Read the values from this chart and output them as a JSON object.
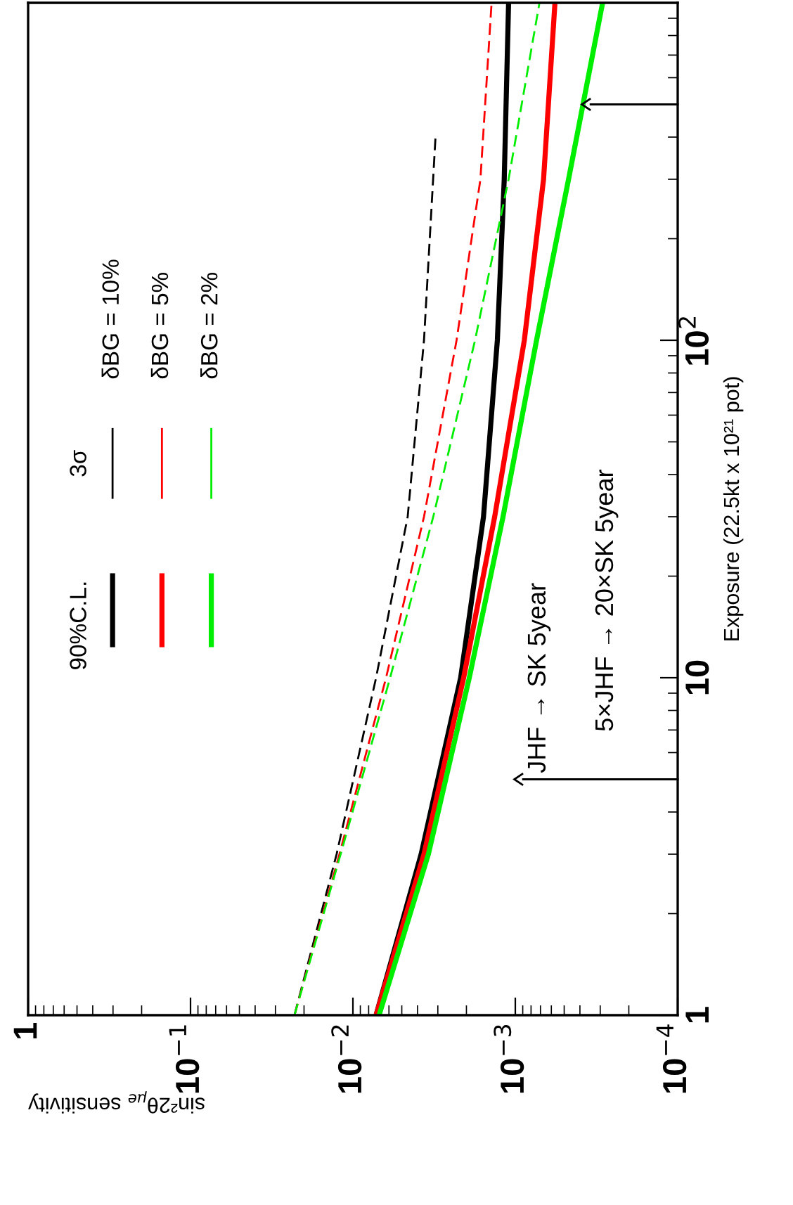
{
  "chart_data": {
    "type": "line",
    "xlabel": "sin²2θ$_{μe}$ sensitivity",
    "ylabel": "Exposure (22.5kt x 10²¹ pot)",
    "log": "xy",
    "xlim": [
      1,
      0.0001
    ],
    "xticks": [
      1,
      {
        "value": 0.1,
        "label": "10$^{−1}$"
      },
      {
        "value": 0.01,
        "label": "10$^{−2}$"
      },
      {
        "value": 0.001,
        "label": "10$^{−3}$"
      },
      {
        "value": 0.0001,
        "label": "10$^{−4}$"
      }
    ],
    "ylim": [
      1,
      1000
    ],
    "yticks": [
      1,
      10,
      {
        "value": 100,
        "label": "10$^{2}$"
      }
    ],
    "series": [
      {
        "color": "#000000",
        "line_style": "solid",
        "x": [
          0.0072,
          0.0038,
          0.00217,
          0.00157,
          0.00129,
          0.00117,
          0.0011
        ],
        "values": [
          1,
          3,
          10,
          30,
          100,
          300,
          1000
        ]
      },
      {
        "color": "#000000",
        "line_style": "dashed",
        "x": [
          0.0229,
          0.0126,
          0.0072,
          0.0046,
          0.00365,
          0.0031
        ],
        "values": [
          1,
          3,
          10,
          30,
          100,
          400
        ]
      },
      {
        "color": "#ff0000",
        "line_style": "solid",
        "x": [
          0.0072,
          0.00365,
          0.00208,
          0.00134,
          0.00088,
          0.00067,
          0.00057
        ],
        "values": [
          1,
          3,
          10,
          30,
          100,
          300,
          1000
        ]
      },
      {
        "color": "#ff0000",
        "line_style": "dashed",
        "x": [
          0.0229,
          0.0121,
          0.00625,
          0.00365,
          0.0023,
          0.00164,
          0.0014
        ],
        "values": [
          1,
          3,
          10,
          30,
          100,
          300,
          1000
        ]
      },
      {
        "color": "#00ee00",
        "line_style": "solid",
        "x": [
          0.0069,
          0.00343,
          0.00192,
          0.00119,
          0.00074,
          0.00047,
          0.00029
        ],
        "values": [
          1,
          3,
          10,
          30,
          100,
          300,
          1000
        ]
      },
      {
        "color": "#00ee00",
        "line_style": "dashed",
        "x": [
          0.0229,
          0.0119,
          0.0059,
          0.0032,
          0.00177,
          0.0011,
          0.00071
        ],
        "values": [
          1,
          3,
          10,
          30,
          100,
          300,
          1000
        ]
      }
    ],
    "ref_lines": [
      {
        "axis": "y",
        "value": 5,
        "label": "JHF → SK 5year"
      },
      {
        "axis": "y",
        "value": 500
      }
    ],
    "annotations": [
      "90%C.L.",
      "3σ",
      "δBG = 10%",
      "δBG = 5%",
      "δBG = 2%",
      "5×JHF → 20×SK 5year"
    ]
  }
}
